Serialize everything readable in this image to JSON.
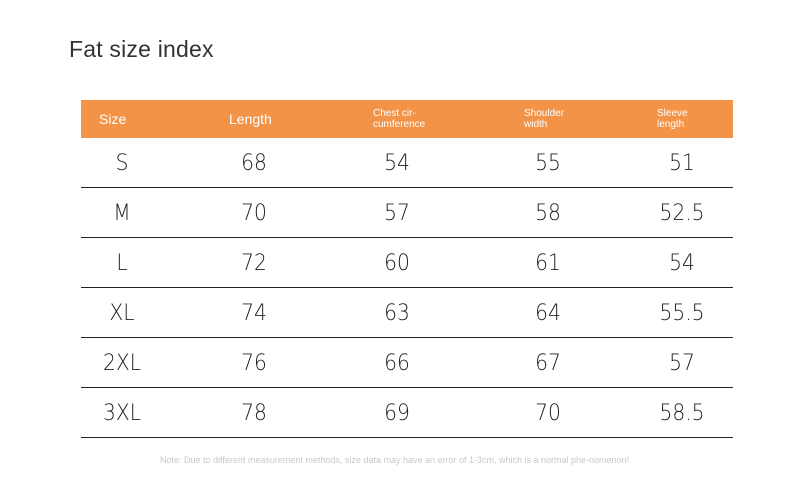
{
  "title": "Fat size index",
  "table": {
    "headers": [
      {
        "line1": "Size",
        "line2": ""
      },
      {
        "line1": "Length",
        "line2": ""
      },
      {
        "line1": "Chest cir-",
        "line2": "cumference"
      },
      {
        "line1": "Shoulder",
        "line2": "width"
      },
      {
        "line1": "Sleeve",
        "line2": "length"
      }
    ],
    "rows": [
      [
        "S",
        "68",
        "54",
        "55",
        "51"
      ],
      [
        "M",
        "70",
        "57",
        "58",
        "52.5"
      ],
      [
        "L",
        "72",
        "60",
        "61",
        "54"
      ],
      [
        "XL",
        "74",
        "63",
        "64",
        "55.5"
      ],
      [
        "2XL",
        "76",
        "66",
        "67",
        "57"
      ],
      [
        "3XL",
        "78",
        "69",
        "70",
        "58.5"
      ]
    ]
  },
  "note": "Note: Due to different measurement methods, size data may have an error of 1-3cm, which is a normal phe-nomenon!",
  "colors": {
    "header_bg": "#f39348",
    "header_text": "#ffffff",
    "rule": "#222222"
  }
}
